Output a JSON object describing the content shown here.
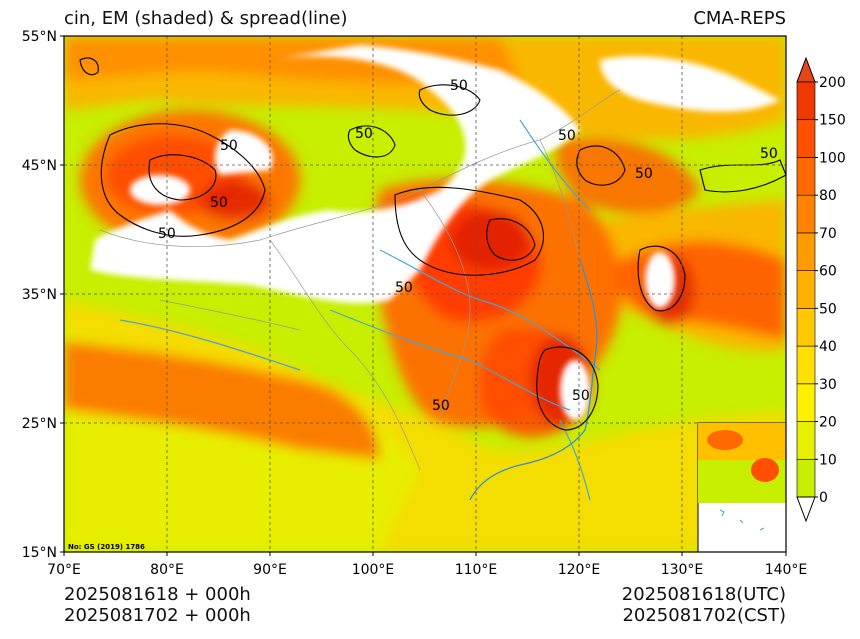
{
  "header": {
    "title": "cin, EM (shaded) & spread(line)",
    "source": "CMA-REPS"
  },
  "map": {
    "lat_ticks": [
      "55°N",
      "45°N",
      "35°N",
      "25°N",
      "15°N"
    ],
    "lon_ticks": [
      "70°E",
      "80°E",
      "90°E",
      "100°E",
      "110°E",
      "120°E",
      "130°E",
      "140°E"
    ],
    "contour_label": "50",
    "map_note": "No: GS (2019) 1786",
    "colors": {
      "low": "#c8ee00",
      "mid": "#ffd000",
      "high": "#ff8c00",
      "very_high": "#ff4500",
      "extreme": "#e02000",
      "ocean": "#c8ee00",
      "land_blank": "#ffffff",
      "river": "#4aa3d9",
      "border": "#999999"
    }
  },
  "colorbar": {
    "levels": [
      "0",
      "10",
      "20",
      "30",
      "40",
      "50",
      "60",
      "70",
      "80",
      "100",
      "150",
      "200"
    ],
    "colors": [
      "#c8ee00",
      "#e6f000",
      "#fff000",
      "#ffe000",
      "#ffc800",
      "#ffb000",
      "#ff9a00",
      "#ff8200",
      "#ff6a00",
      "#ff5000",
      "#ee3a00"
    ],
    "extend_top_color": "#e8461a",
    "extend_bottom_color": "#ffffff"
  },
  "times": {
    "init_line": "2025081618  +  000h",
    "valid_line": "2025081702  +  000h",
    "utc_label": "2025081618(UTC)",
    "cst_label": "2025081702(CST)"
  }
}
